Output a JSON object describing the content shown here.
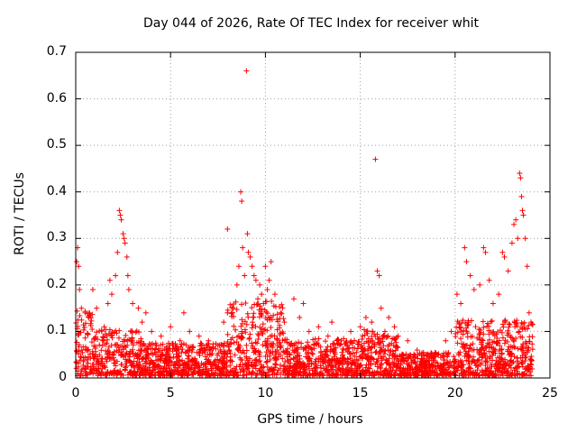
{
  "chart_data": {
    "type": "scatter",
    "title": "Day 044 of 2026, Rate Of TEC Index for receiver whit",
    "xlabel": "GPS time / hours",
    "ylabel": "ROTI / TECUs",
    "xlim": [
      0,
      25
    ],
    "ylim": [
      0,
      0.7
    ],
    "xticks": [
      "0",
      "5",
      "10",
      "15",
      "20",
      "25"
    ],
    "yticks": [
      "0",
      "0.1",
      "0.2",
      "0.3",
      "0.4",
      "0.5",
      "0.6",
      "0.7"
    ],
    "grid": true,
    "marker": "+",
    "color": "#ff0000",
    "series": [
      {
        "name": "ROTI",
        "points": [
          [
            0.05,
            0.25
          ],
          [
            0.1,
            0.28
          ],
          [
            0.15,
            0.24
          ],
          [
            0.2,
            0.19
          ],
          [
            0.3,
            0.15
          ],
          [
            0.5,
            0.14
          ],
          [
            0.7,
            0.13
          ],
          [
            0.9,
            0.19
          ],
          [
            1.1,
            0.15
          ],
          [
            1.5,
            0.11
          ],
          [
            1.7,
            0.16
          ],
          [
            1.8,
            0.21
          ],
          [
            1.9,
            0.18
          ],
          [
            2.1,
            0.22
          ],
          [
            2.2,
            0.27
          ],
          [
            2.3,
            0.36
          ],
          [
            2.35,
            0.35
          ],
          [
            2.4,
            0.34
          ],
          [
            2.5,
            0.31
          ],
          [
            2.55,
            0.3
          ],
          [
            2.6,
            0.29
          ],
          [
            2.7,
            0.26
          ],
          [
            2.75,
            0.22
          ],
          [
            2.8,
            0.19
          ],
          [
            3.0,
            0.16
          ],
          [
            3.3,
            0.15
          ],
          [
            3.5,
            0.12
          ],
          [
            3.7,
            0.14
          ],
          [
            4.0,
            0.1
          ],
          [
            4.5,
            0.09
          ],
          [
            5.0,
            0.11
          ],
          [
            5.5,
            0.08
          ],
          [
            5.7,
            0.14
          ],
          [
            6.0,
            0.1
          ],
          [
            6.5,
            0.09
          ],
          [
            7.0,
            0.08
          ],
          [
            7.5,
            0.07
          ],
          [
            7.8,
            0.12
          ],
          [
            8.0,
            0.14
          ],
          [
            8.0,
            0.32
          ],
          [
            8.3,
            0.15
          ],
          [
            8.5,
            0.2
          ],
          [
            8.6,
            0.24
          ],
          [
            8.7,
            0.4
          ],
          [
            8.75,
            0.38
          ],
          [
            8.8,
            0.28
          ],
          [
            8.9,
            0.22
          ],
          [
            9.0,
            0.66
          ],
          [
            9.05,
            0.31
          ],
          [
            9.1,
            0.27
          ],
          [
            9.2,
            0.26
          ],
          [
            9.3,
            0.24
          ],
          [
            9.4,
            0.22
          ],
          [
            9.5,
            0.21
          ],
          [
            9.6,
            0.17
          ],
          [
            9.7,
            0.2
          ],
          [
            9.8,
            0.18
          ],
          [
            9.9,
            0.16
          ],
          [
            10.0,
            0.24
          ],
          [
            10.1,
            0.19
          ],
          [
            10.2,
            0.21
          ],
          [
            10.3,
            0.25
          ],
          [
            10.5,
            0.18
          ],
          [
            10.8,
            0.14
          ],
          [
            11.0,
            0.12
          ],
          [
            11.5,
            0.17
          ],
          [
            11.8,
            0.13
          ],
          [
            12.0,
            0.16
          ],
          [
            12.3,
            0.1
          ],
          [
            12.8,
            0.11
          ],
          [
            13.3,
            0.09
          ],
          [
            13.5,
            0.12
          ],
          [
            14.0,
            0.08
          ],
          [
            14.5,
            0.1
          ],
          [
            15.0,
            0.11
          ],
          [
            15.3,
            0.13
          ],
          [
            15.6,
            0.12
          ],
          [
            15.8,
            0.47
          ],
          [
            15.9,
            0.23
          ],
          [
            16.0,
            0.22
          ],
          [
            16.1,
            0.15
          ],
          [
            16.3,
            0.1
          ],
          [
            16.5,
            0.13
          ],
          [
            16.8,
            0.11
          ],
          [
            17.0,
            0.09
          ],
          [
            17.5,
            0.08
          ],
          [
            18.0,
            0.06
          ],
          [
            18.5,
            0.05
          ],
          [
            19.0,
            0.05
          ],
          [
            19.5,
            0.08
          ],
          [
            19.8,
            0.1
          ],
          [
            20.1,
            0.18
          ],
          [
            20.3,
            0.16
          ],
          [
            20.5,
            0.28
          ],
          [
            20.6,
            0.25
          ],
          [
            20.8,
            0.22
          ],
          [
            21.0,
            0.19
          ],
          [
            21.3,
            0.2
          ],
          [
            21.5,
            0.28
          ],
          [
            21.6,
            0.27
          ],
          [
            21.8,
            0.21
          ],
          [
            22.0,
            0.16
          ],
          [
            22.3,
            0.18
          ],
          [
            22.5,
            0.27
          ],
          [
            22.6,
            0.26
          ],
          [
            22.8,
            0.23
          ],
          [
            23.0,
            0.29
          ],
          [
            23.1,
            0.33
          ],
          [
            23.2,
            0.34
          ],
          [
            23.3,
            0.3
          ],
          [
            23.4,
            0.44
          ],
          [
            23.45,
            0.43
          ],
          [
            23.5,
            0.39
          ],
          [
            23.55,
            0.36
          ],
          [
            23.6,
            0.35
          ],
          [
            23.7,
            0.3
          ],
          [
            23.8,
            0.24
          ],
          [
            23.9,
            0.14
          ],
          [
            24.0,
            0.12
          ]
        ]
      }
    ]
  }
}
